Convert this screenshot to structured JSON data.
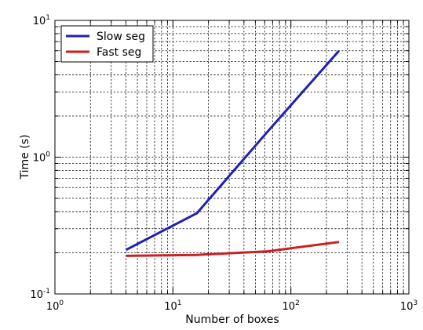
{
  "chart_data": {
    "type": "line",
    "title": "",
    "xlabel": "Number of boxes",
    "ylabel": "Time (s)",
    "xscale": "log",
    "yscale": "log",
    "xlim": [
      1,
      1000
    ],
    "ylim": [
      0.1,
      10
    ],
    "grid": true,
    "legend_position": "top-left",
    "x_ticks": [
      {
        "base": "10",
        "exp": "0",
        "value": 1
      },
      {
        "base": "10",
        "exp": "1",
        "value": 10
      },
      {
        "base": "10",
        "exp": "2",
        "value": 100
      },
      {
        "base": "10",
        "exp": "3",
        "value": 1000
      }
    ],
    "y_ticks": [
      {
        "base": "10",
        "exp": "-1",
        "value": 0.1
      },
      {
        "base": "10",
        "exp": "0",
        "value": 1
      },
      {
        "base": "10",
        "exp": "1",
        "value": 10
      }
    ],
    "series": [
      {
        "name": "Slow seg",
        "color": "#1f1fb4",
        "x": [
          4,
          16,
          64,
          256
        ],
        "y": [
          0.21,
          0.39,
          1.55,
          6.0
        ]
      },
      {
        "name": "Fast seg",
        "color": "#cc1f1f",
        "x": [
          4,
          16,
          64,
          256
        ],
        "y": [
          0.19,
          0.193,
          0.205,
          0.24
        ]
      }
    ]
  }
}
